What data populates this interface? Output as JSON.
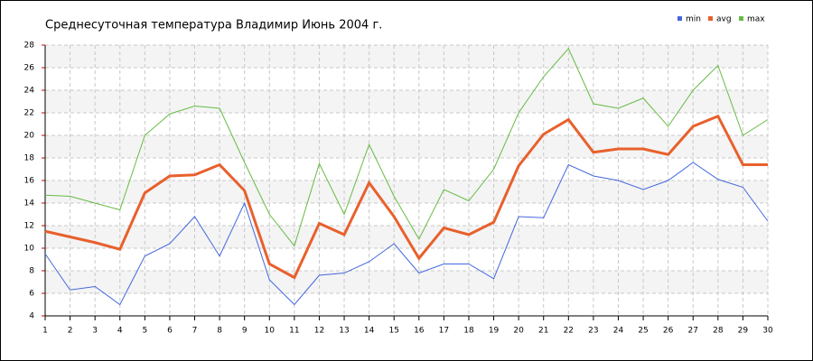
{
  "chart_data": {
    "type": "line",
    "title": "Среднесуточная температура Владимир  Июнь 2004 г.",
    "x": [
      1,
      2,
      3,
      4,
      5,
      6,
      7,
      8,
      9,
      10,
      11,
      12,
      13,
      14,
      15,
      16,
      17,
      18,
      19,
      20,
      21,
      22,
      23,
      24,
      25,
      26,
      27,
      28,
      29,
      30
    ],
    "series": [
      {
        "name": "min",
        "color": "#4466dd",
        "values": [
          9.5,
          6.3,
          6.6,
          5.0,
          9.3,
          10.4,
          12.8,
          9.3,
          14.0,
          7.2,
          5.0,
          7.6,
          7.8,
          8.8,
          10.4,
          7.8,
          8.6,
          8.6,
          7.3,
          12.8,
          12.7,
          17.4,
          16.4,
          16.0,
          15.2,
          16.0,
          17.6,
          16.1,
          15.4,
          12.4
        ]
      },
      {
        "name": "avg",
        "color": "#e8602c",
        "values": [
          11.5,
          11.0,
          10.5,
          9.9,
          14.9,
          16.4,
          16.5,
          17.4,
          15.1,
          8.6,
          7.4,
          12.2,
          11.2,
          15.8,
          12.8,
          9.1,
          11.8,
          11.2,
          12.3,
          17.3,
          20.1,
          21.4,
          18.5,
          18.8,
          18.8,
          18.3,
          20.8,
          21.7,
          17.4,
          17.4
        ]
      },
      {
        "name": "max",
        "color": "#66bb44",
        "values": [
          14.7,
          14.6,
          14.0,
          13.4,
          20.0,
          21.9,
          22.6,
          22.4,
          17.6,
          13.0,
          10.2,
          17.5,
          13.0,
          19.2,
          14.6,
          10.8,
          15.2,
          14.2,
          17.0,
          22.0,
          25.2,
          27.7,
          22.8,
          22.4,
          23.3,
          20.8,
          24.0,
          26.2,
          20.0,
          21.4
        ]
      }
    ],
    "xlim": [
      1,
      30
    ],
    "xticks": [
      1,
      2,
      3,
      4,
      5,
      6,
      7,
      8,
      9,
      10,
      11,
      12,
      13,
      14,
      15,
      16,
      17,
      18,
      19,
      20,
      21,
      22,
      23,
      24,
      25,
      26,
      27,
      28,
      29,
      30
    ],
    "ylim": [
      4,
      28
    ],
    "yticks": [
      4,
      6,
      8,
      10,
      12,
      14,
      16,
      18,
      20,
      22,
      24,
      26,
      28
    ],
    "grid": true
  }
}
